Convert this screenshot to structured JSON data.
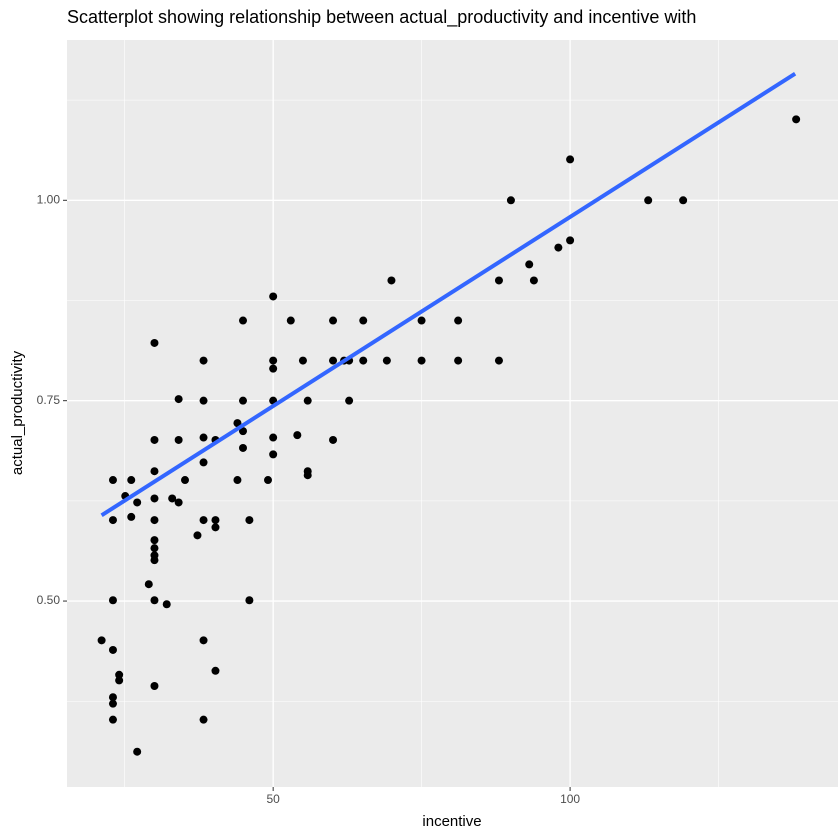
{
  "chart_data": {
    "type": "scatter",
    "title": "Scatterplot showing relationship between actual_productivity and incentive with",
    "x_label": "incentive",
    "y_label": "actual_productivity",
    "log_x": true,
    "grid": true,
    "color": "#000000",
    "xlim": [
      30.9,
      186.9
    ],
    "ylim": [
      0.268,
      1.2
    ],
    "xticks": [
      50,
      100
    ],
    "yticks": [
      {
        "value": 0.5,
        "label": "0.50"
      },
      {
        "value": 0.75,
        "label": "0.75"
      },
      {
        "value": 1.0,
        "label": "1.00"
      }
    ],
    "x": [
      33.5,
      34.4,
      34.4,
      34.4,
      34.4,
      34.4,
      34.4,
      34.4,
      34.9,
      34.9,
      35.4,
      35.9,
      35.9,
      36.4,
      36.4,
      37.4,
      37.9,
      37.9,
      37.9,
      37.9,
      37.9,
      37.9,
      37.9,
      37.9,
      37.9,
      37.9,
      37.9,
      39.0,
      39.5,
      40.1,
      40.1,
      40.1,
      40.7,
      41.9,
      42.5,
      42.5,
      42.5,
      42.5,
      42.5,
      42.5,
      42.5,
      43.7,
      43.7,
      43.7,
      43.7,
      46.0,
      46.0,
      46.6,
      46.6,
      46.6,
      46.6,
      47.3,
      47.3,
      49.4,
      50,
      50,
      50,
      50,
      50,
      50,
      52.1,
      52.9,
      53.6,
      54.2,
      54.2,
      54.2,
      57.5,
      57.5,
      57.5,
      59.0,
      59.7,
      59.7,
      61.7,
      61.7,
      65.2,
      65.9,
      70.7,
      70.7,
      77.0,
      77.0,
      84.7,
      84.7,
      87.1,
      90.9,
      91.9,
      97.3,
      100,
      100,
      120.0,
      130.2,
      169.5
    ],
    "y": [
      0.451,
      0.651,
      0.601,
      0.501,
      0.439,
      0.38,
      0.372,
      0.352,
      0.408,
      0.401,
      0.631,
      0.651,
      0.605,
      0.623,
      0.312,
      0.521,
      0.822,
      0.701,
      0.662,
      0.628,
      0.601,
      0.576,
      0.566,
      0.557,
      0.551,
      0.501,
      0.394,
      0.496,
      0.628,
      0.752,
      0.701,
      0.623,
      0.651,
      0.582,
      0.8,
      0.75,
      0.704,
      0.673,
      0.601,
      0.451,
      0.352,
      0.701,
      0.601,
      0.592,
      0.413,
      0.722,
      0.651,
      0.85,
      0.75,
      0.712,
      0.691,
      0.601,
      0.501,
      0.651,
      0.88,
      0.8,
      0.79,
      0.75,
      0.704,
      0.683,
      0.85,
      0.707,
      0.8,
      0.75,
      0.662,
      0.657,
      0.85,
      0.8,
      0.701,
      0.8,
      0.8,
      0.75,
      0.85,
      0.8,
      0.8,
      0.9,
      0.85,
      0.8,
      0.85,
      0.8,
      0.9,
      0.8,
      1.0,
      0.92,
      0.9,
      0.941,
      1.051,
      0.95,
      1.0,
      1.0,
      1.101
    ],
    "trend_line": {
      "x": [
        33.5,
        169.1
      ],
      "y": [
        0.607,
        1.158
      ],
      "color": "#3366ff"
    }
  }
}
